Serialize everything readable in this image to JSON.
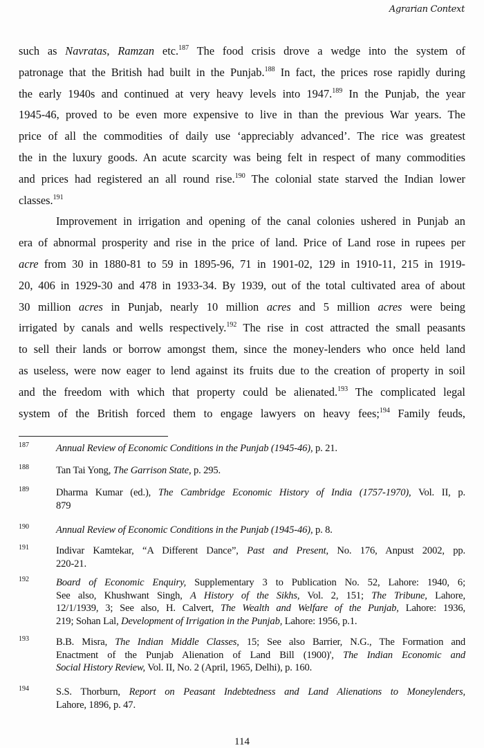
{
  "header": {
    "running_title": "Agrarian Context"
  },
  "body_lines": [
    {
      "segs": [
        [
          "such as ",
          ""
        ],
        [
          "Navratas",
          "i"
        ],
        [
          ", ",
          ""
        ],
        [
          "Ramzan",
          "i"
        ],
        [
          " etc.",
          ""
        ],
        [
          "187",
          "s"
        ],
        [
          " The food crisis drove a wedge into the system of",
          ""
        ]
      ]
    },
    {
      "segs": [
        [
          "patronage that the British had built in the Punjab.",
          ""
        ],
        [
          "188",
          "s"
        ],
        [
          " In fact, the prices rose rapidly during",
          ""
        ]
      ]
    },
    {
      "segs": [
        [
          "the early 1940s and continued at very heavy levels into 1947.",
          ""
        ],
        [
          "189",
          "s"
        ],
        [
          " In the Punjab, the year",
          ""
        ]
      ]
    },
    {
      "segs": [
        [
          "1945-46, proved to be even more expensive to live in than  the previous War years. The",
          ""
        ]
      ]
    },
    {
      "segs": [
        [
          "price of all the commodities of daily use ‘appreciably advanced’. The rice was greatest",
          ""
        ]
      ]
    },
    {
      "segs": [
        [
          "the in the luxury goods. An acute scarcity was being felt in respect of many commodities",
          ""
        ]
      ]
    },
    {
      "segs": [
        [
          "and prices had registered an all round rise.",
          ""
        ],
        [
          "190",
          "s"
        ],
        [
          " The colonial state starved the Indian lower",
          ""
        ]
      ]
    },
    {
      "segs": [
        [
          "classes.",
          ""
        ],
        [
          "191",
          "s"
        ]
      ],
      "last": true
    },
    {
      "segs": [
        [
          "Improvement in irrigation and opening of the canal colonies ushered in Punjab an",
          ""
        ]
      ],
      "indent": true
    },
    {
      "segs": [
        [
          "era of abnormal prosperity and rise in the price of land. Price of Land rose in rupees per",
          ""
        ]
      ]
    },
    {
      "segs": [
        [
          "acre",
          "i"
        ],
        [
          " from 30 in 1880-81 to 59 in 1895-96, 71 in 1901-02, 129 in 1910-11, 215 in 1919-",
          ""
        ]
      ]
    },
    {
      "segs": [
        [
          "20, 406 in 1929-30 and 478 in 1933-34. By 1939, out of the total cultivated area of about",
          ""
        ]
      ]
    },
    {
      "segs": [
        [
          "30 million ",
          ""
        ],
        [
          "acres",
          "i"
        ],
        [
          " in Punjab, nearly 10 million ",
          ""
        ],
        [
          "acres",
          "i"
        ],
        [
          " and 5 million ",
          ""
        ],
        [
          "acres",
          "i"
        ],
        [
          " were being",
          ""
        ]
      ]
    },
    {
      "segs": [
        [
          "irrigated by canals and wells respectively.",
          ""
        ],
        [
          "192",
          "s"
        ],
        [
          " The rise in cost attracted the small peasants",
          ""
        ]
      ]
    },
    {
      "segs": [
        [
          "to sell their lands or borrow amongst them, since the money-lenders who once held land",
          ""
        ]
      ]
    },
    {
      "segs": [
        [
          "as useless, were now eager to lend against its fruits due to the creation of property in soil",
          ""
        ]
      ]
    },
    {
      "segs": [
        [
          "and the freedom with which that property could be alienated.",
          ""
        ],
        [
          "193",
          "s"
        ],
        [
          " The complicated legal",
          ""
        ]
      ]
    },
    {
      "segs": [
        [
          "system of the British forced them to engage lawyers on heavy fees;",
          ""
        ],
        [
          "194",
          "s"
        ],
        [
          " Family feuds,",
          ""
        ]
      ]
    }
  ],
  "footnotes": [
    {
      "num": "187",
      "lines": [
        [
          [
            "Annual Review of Economic Conditions in the Punjab (1945-46)",
            "i"
          ],
          [
            ", p. 21.",
            ""
          ]
        ]
      ]
    },
    {
      "num": "188",
      "lines": [
        [
          [
            "Tan Tai Yong, ",
            ""
          ],
          [
            "The Garrison State",
            "i"
          ],
          [
            ", p. 295.",
            ""
          ]
        ]
      ]
    },
    {
      "num": "189",
      "lines": [
        [
          [
            "Dharma Kumar (ed.), ",
            ""
          ],
          [
            "The Cambridge Economic History of India (1757-1970),",
            "i"
          ],
          [
            " Vol. II, p.",
            ""
          ]
        ],
        [
          [
            "879",
            ""
          ]
        ]
      ]
    },
    {
      "num": "190",
      "lines": [
        [
          [
            "Annual Review of Economic Conditions in the Punjab (1945-46)",
            "i"
          ],
          [
            ", p. 8.",
            ""
          ]
        ]
      ]
    },
    {
      "num": "191",
      "lines": [
        [
          [
            "Indivar Kamtekar, “A Different Dance”, ",
            ""
          ],
          [
            "Past and Present",
            "i"
          ],
          [
            ", No. 176, Anpust 2002, pp.",
            ""
          ]
        ],
        [
          [
            "220-21.",
            ""
          ]
        ]
      ]
    },
    {
      "num": "192",
      "lines": [
        [
          [
            "Board of Economic Enquiry,",
            "i"
          ],
          [
            " Supplementary 3 to Publication No. 52, Lahore: 1940, 6;",
            ""
          ]
        ],
        [
          [
            "See also, Khushwant Singh, ",
            ""
          ],
          [
            "A History of the Sikhs",
            "i"
          ],
          [
            ", Vol. 2, 151; ",
            ""
          ],
          [
            "The Tribune,",
            "i"
          ],
          [
            " Lahore,",
            ""
          ]
        ],
        [
          [
            "12/1/1939, 3;  See also, H. Calvert, ",
            ""
          ],
          [
            "The Wealth and Welfare of the Punjab,",
            "i"
          ],
          [
            " Lahore: 1936,",
            ""
          ]
        ],
        [
          [
            "219; Sohan Lal, ",
            ""
          ],
          [
            "Development of Irrigation in the Punjab,",
            "i"
          ],
          [
            " Lahore: 1956, p.1.",
            ""
          ]
        ]
      ]
    },
    {
      "num": "193",
      "lines": [
        [
          [
            "B.B. Misra, ",
            ""
          ],
          [
            "The Indian Middle Classes,",
            "i"
          ],
          [
            " 15; See also Barrier, N.G., The Formation and",
            ""
          ]
        ],
        [
          [
            "Enactment of the Punjab Alienation of Land Bill (1900)', ",
            ""
          ],
          [
            "The Indian Economic and",
            "i"
          ]
        ],
        [
          [
            "Social History Review,",
            "i"
          ],
          [
            " Vol. II, No. 2 (April, 1965, Delhi), p. 160.",
            ""
          ]
        ]
      ]
    },
    {
      "num": "194",
      "lines": [
        [
          [
            "S.S. Thorburn, ",
            ""
          ],
          [
            "Report on Peasant Indebtedness and Land Alienations to Moneylenders,",
            "i"
          ]
        ],
        [
          [
            "Lahore, 1896, p. 47.",
            ""
          ]
        ]
      ]
    }
  ],
  "page_number": "114"
}
